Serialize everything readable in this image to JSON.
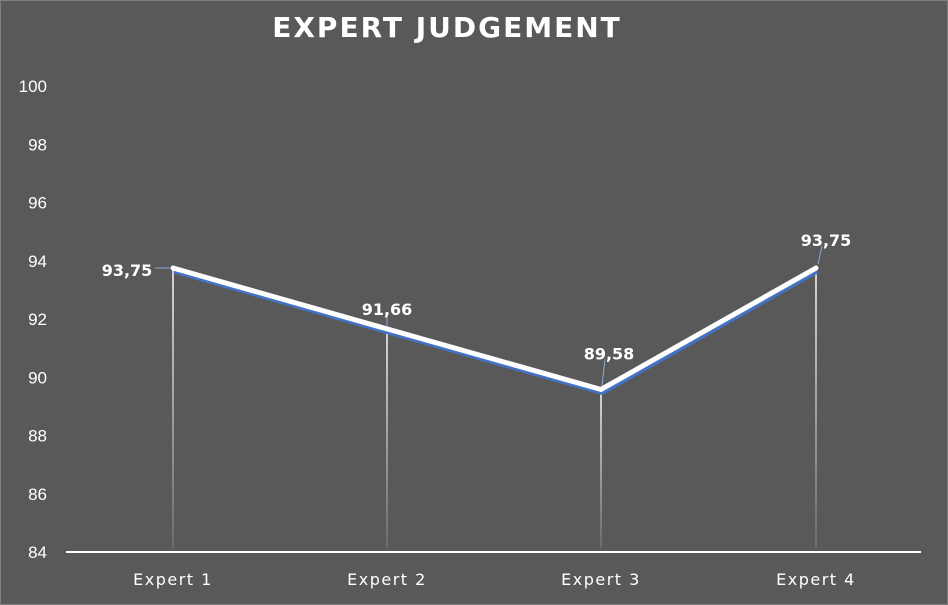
{
  "chart_data": {
    "type": "line",
    "title": "EXPERT JUDGEMENT",
    "categories": [
      "Expert 1",
      "Expert 2",
      "Expert 3",
      "Expert 4"
    ],
    "values": [
      93.75,
      91.66,
      89.58,
      93.75
    ],
    "data_labels": [
      "93,75",
      "91,66",
      "89,58",
      "93,75"
    ],
    "y_ticks": [
      "84",
      "86",
      "88",
      "90",
      "92",
      "94",
      "96",
      "98",
      "100"
    ],
    "ylim": [
      84,
      100
    ],
    "drop_lines": true,
    "grid": false,
    "colors": {
      "background": "#595959",
      "line": "#ffffff",
      "line_shadow": "#4472c4",
      "text": "#ffffff"
    }
  }
}
